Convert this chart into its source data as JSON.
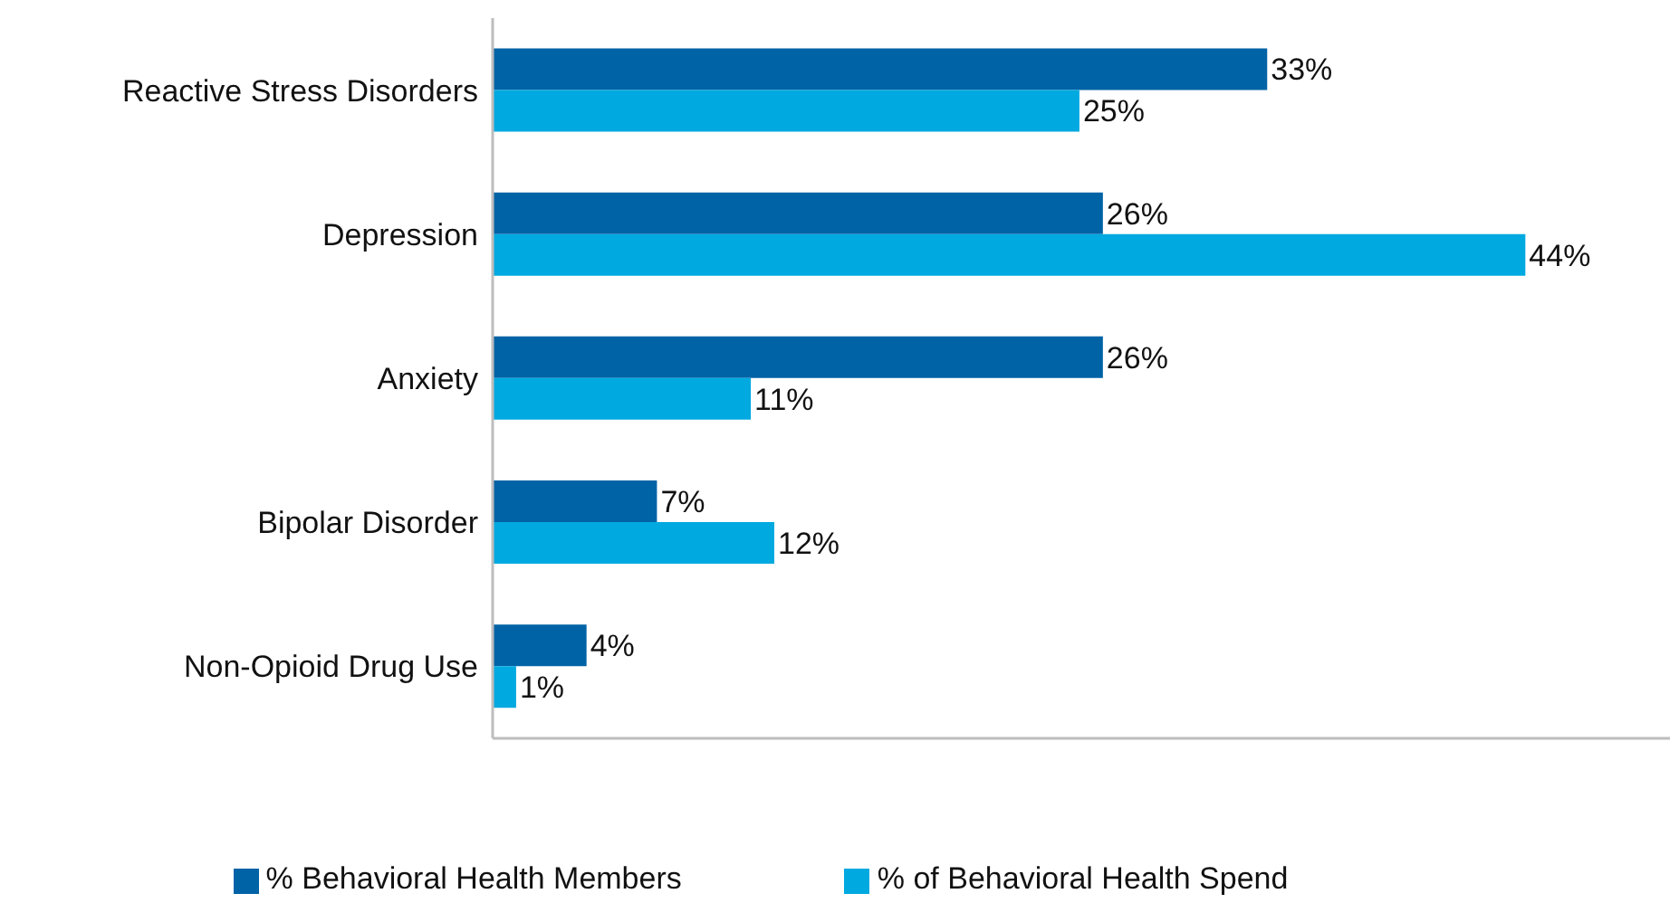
{
  "chart_data": {
    "type": "bar",
    "orientation": "horizontal",
    "categories": [
      "Reactive Stress Disorders",
      "Depression",
      "Anxiety",
      "Bipolar Disorder",
      "Non-Opioid Drug Use"
    ],
    "series": [
      {
        "name": "% Behavioral Health Members",
        "color": "#0063a6",
        "values": [
          33,
          26,
          26,
          7,
          4
        ],
        "value_labels": [
          "33%",
          "26%",
          "26%",
          "7%",
          "4%"
        ]
      },
      {
        "name": "% of Behavioral Health Spend",
        "color": "#00a9e0",
        "values": [
          25,
          44,
          11,
          12,
          1
        ],
        "value_labels": [
          "25%",
          "44%",
          "11%",
          "12%",
          "1%"
        ]
      }
    ],
    "tick_labels": "y",
    "legend": "bottom"
  }
}
